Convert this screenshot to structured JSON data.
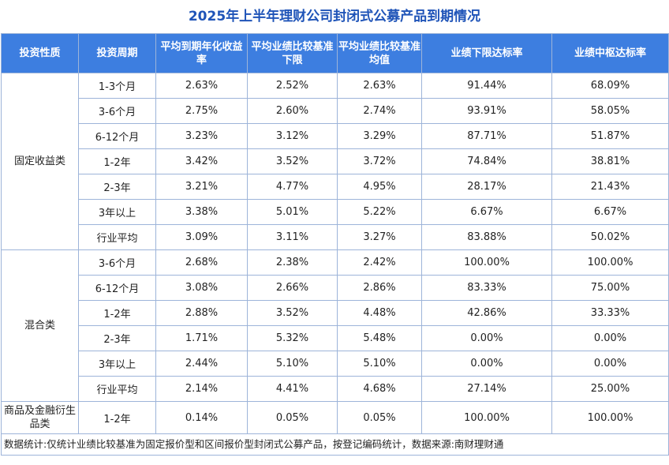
{
  "title": "2025年上半年理财公司封闭式公募产品到期情况",
  "headers": [
    "投资性质",
    "投资周期",
    "平均到期年化收益率",
    "平均业绩比较基准下限",
    "平均业绩比较基准均值",
    "业绩下限达标率",
    "业绩中枢达标率"
  ],
  "groups": [
    {
      "category": "固定收益类",
      "rows": [
        [
          "1-3个月",
          "2.63%",
          "2.52%",
          "2.63%",
          "91.44%",
          "68.09%"
        ],
        [
          "3-6个月",
          "2.75%",
          "2.60%",
          "2.74%",
          "93.91%",
          "58.05%"
        ],
        [
          "6-12个月",
          "3.23%",
          "3.12%",
          "3.29%",
          "87.71%",
          "51.87%"
        ],
        [
          "1-2年",
          "3.42%",
          "3.52%",
          "3.72%",
          "74.84%",
          "38.81%"
        ],
        [
          "2-3年",
          "3.21%",
          "4.77%",
          "4.95%",
          "28.17%",
          "21.43%"
        ],
        [
          "3年以上",
          "3.38%",
          "5.01%",
          "5.22%",
          "6.67%",
          "6.67%"
        ],
        [
          "行业平均",
          "3.09%",
          "3.11%",
          "3.27%",
          "83.88%",
          "50.02%"
        ]
      ]
    },
    {
      "category": "混合类",
      "rows": [
        [
          "3-6个月",
          "2.68%",
          "2.38%",
          "2.42%",
          "100.00%",
          "100.00%"
        ],
        [
          "6-12个月",
          "3.08%",
          "2.66%",
          "2.86%",
          "83.33%",
          "75.00%"
        ],
        [
          "1-2年",
          "2.88%",
          "3.52%",
          "4.48%",
          "42.86%",
          "33.33%"
        ],
        [
          "2-3年",
          "1.71%",
          "5.32%",
          "5.48%",
          "0.00%",
          "0.00%"
        ],
        [
          "3年以上",
          "2.44%",
          "5.10%",
          "5.10%",
          "0.00%",
          "0.00%"
        ],
        [
          "行业平均",
          "2.14%",
          "4.41%",
          "4.68%",
          "27.14%",
          "25.00%"
        ]
      ]
    },
    {
      "category": "商品及金融衍生品类",
      "rows": [
        [
          "1-2年",
          "0.14%",
          "0.05%",
          "0.05%",
          "100.00%",
          "100.00%"
        ]
      ]
    }
  ],
  "footnote": "数据统计:仅统计业绩比较基准为固定报价型和区间报价型封闭式公募产品，按登记编码统计，数据来源:南财理财通",
  "colors": {
    "title": "#1f54b8",
    "header_bg": "#3d7ee0",
    "border": "#9db4d9"
  }
}
